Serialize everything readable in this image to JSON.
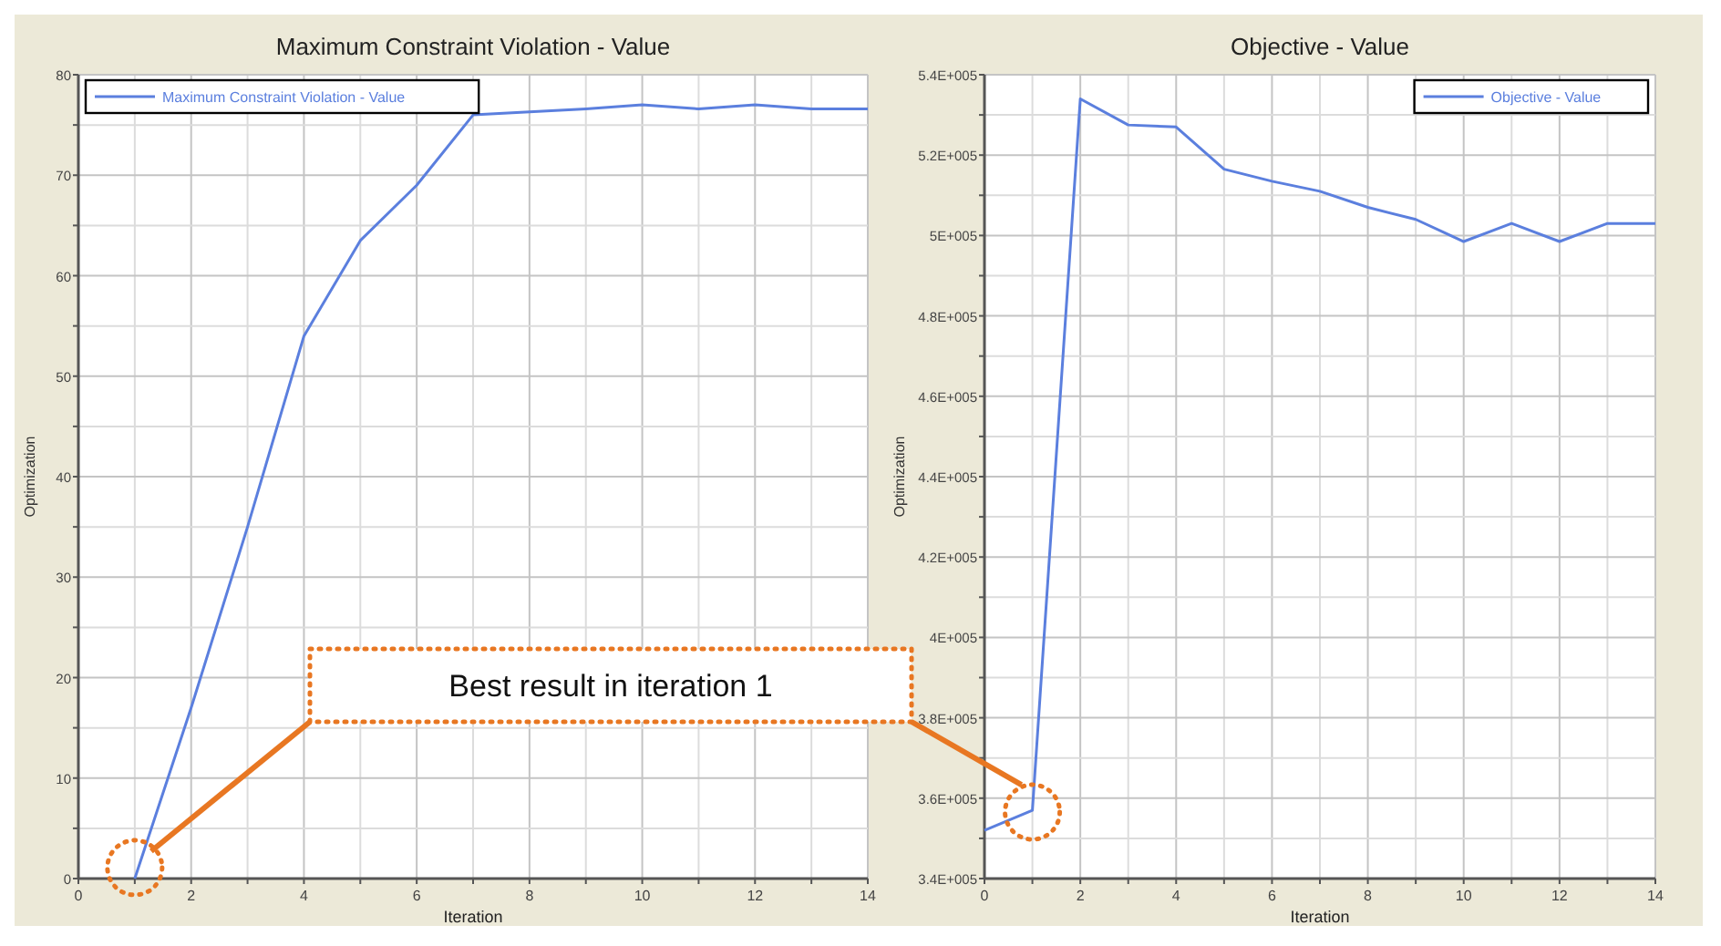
{
  "chart_data": [
    {
      "type": "line",
      "title": "Maximum Constraint Violation - Value",
      "xlabel": "Iteration",
      "ylabel": "Optimization",
      "xlim": [
        0,
        14
      ],
      "ylim": [
        0,
        80
      ],
      "xticks": [
        0,
        {
          "value": 1,
          "label": null
        },
        2,
        {
          "value": 3,
          "label": null
        },
        4,
        {
          "value": 5,
          "label": null
        },
        6,
        {
          "value": 7,
          "label": null
        },
        8,
        {
          "value": 9,
          "label": null
        },
        10,
        {
          "value": 11,
          "label": null
        },
        12,
        {
          "value": 13,
          "label": null
        },
        14
      ],
      "yticks": [
        0,
        {
          "value": 5,
          "label": null
        },
        10,
        {
          "value": 15,
          "label": null
        },
        20,
        {
          "value": 25,
          "label": null
        },
        30,
        {
          "value": 35,
          "label": null
        },
        40,
        {
          "value": 45,
          "label": null
        },
        50,
        {
          "value": 55,
          "label": null
        },
        60,
        {
          "value": 65,
          "label": null
        },
        70,
        {
          "value": 75,
          "label": null
        },
        80
      ],
      "grid": true,
      "legend": "top left",
      "series": [
        {
          "name": "Maximum Constraint Violation - Value",
          "color": "#5b7fde",
          "x": [
            1,
            2,
            3,
            4,
            5,
            6,
            7,
            8,
            9,
            10,
            11,
            12,
            13,
            14
          ],
          "values": [
            0,
            17,
            35,
            54,
            63.5,
            69,
            76,
            76.3,
            76.6,
            77,
            76.6,
            77,
            76.6,
            76.6
          ]
        }
      ],
      "annotations": [
        "Best result in iteration 1"
      ]
    },
    {
      "type": "line",
      "title": "Objective - Value",
      "xlabel": "Iteration",
      "ylabel": "Optimization",
      "xlim": [
        0,
        14
      ],
      "ylim": [
        340000,
        540000
      ],
      "xticks": [
        0,
        {
          "value": 1,
          "label": null
        },
        2,
        {
          "value": 3,
          "label": null
        },
        4,
        {
          "value": 5,
          "label": null
        },
        6,
        {
          "value": 7,
          "label": null
        },
        8,
        {
          "value": 9,
          "label": null
        },
        10,
        {
          "value": 11,
          "label": null
        },
        12,
        {
          "value": 13,
          "label": null
        },
        {
          "value": 14,
          "label": "14"
        }
      ],
      "yticks": [
        {
          "value": 340000,
          "label": "3.4E+005"
        },
        {
          "value": 350000,
          "label": null
        },
        {
          "value": 360000,
          "label": "3.6E+005"
        },
        {
          "value": 370000,
          "label": null
        },
        {
          "value": 380000,
          "label": "3.8E+005"
        },
        {
          "value": 390000,
          "label": null
        },
        {
          "value": 400000,
          "label": "4E+005"
        },
        {
          "value": 410000,
          "label": null
        },
        {
          "value": 420000,
          "label": "4.2E+005"
        },
        {
          "value": 430000,
          "label": null
        },
        {
          "value": 440000,
          "label": "4.4E+005"
        },
        {
          "value": 450000,
          "label": null
        },
        {
          "value": 460000,
          "label": "4.6E+005"
        },
        {
          "value": 470000,
          "label": null
        },
        {
          "value": 480000,
          "label": "4.8E+005"
        },
        {
          "value": 490000,
          "label": null
        },
        {
          "value": 500000,
          "label": "5E+005"
        },
        {
          "value": 510000,
          "label": null
        },
        {
          "value": 520000,
          "label": "5.2E+005"
        },
        {
          "value": 530000,
          "label": null
        },
        {
          "value": 540000,
          "label": "5.4E+005"
        }
      ],
      "grid": true,
      "legend": "top right",
      "series": [
        {
          "name": "Objective - Value",
          "color": "#5b7fde",
          "x": [
            0,
            1,
            2,
            3,
            4,
            5,
            6,
            7,
            8,
            9,
            10,
            11,
            12,
            13,
            14
          ],
          "values": [
            352000,
            357000,
            534000,
            527500,
            527000,
            516500,
            513500,
            511000,
            507000,
            504000,
            498500,
            503000,
            498500,
            503000,
            503000
          ]
        }
      ]
    }
  ]
}
